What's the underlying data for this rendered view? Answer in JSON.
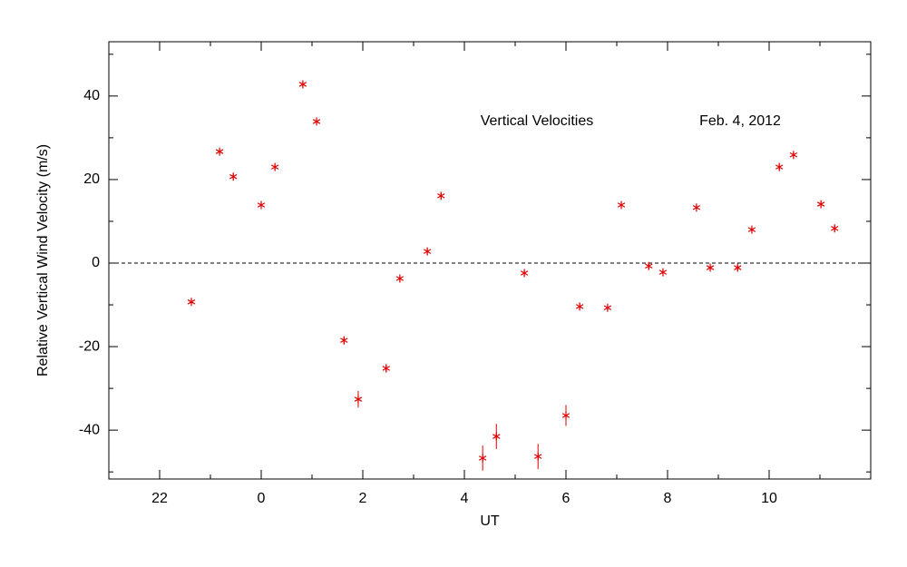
{
  "chart_data": {
    "type": "scatter",
    "xlabel": "UT",
    "ylabel": "Relative Vertical Wind Velocity (m/s)",
    "annotations": [
      "Vertical Velocities",
      "Feb. 4, 2012"
    ],
    "color": "#e00000",
    "x": [
      -1.375,
      -0.82,
      -0.55,
      0.0,
      0.27,
      0.82,
      1.09,
      1.63,
      1.91,
      2.46,
      2.73,
      3.27,
      3.54,
      4.36,
      4.63,
      5.18,
      5.45,
      6.0,
      6.27,
      6.82,
      7.09,
      7.63,
      7.91,
      8.57,
      8.84,
      9.38,
      9.66,
      10.2,
      10.48,
      11.02,
      11.29
    ],
    "values": [
      -9.3,
      26.7,
      20.7,
      13.9,
      23.0,
      42.8,
      33.9,
      -18.5,
      -32.6,
      -25.2,
      -3.7,
      2.8,
      16.1,
      -46.7,
      -41.5,
      -2.4,
      -46.3,
      -36.5,
      -10.4,
      -10.7,
      13.9,
      -0.7,
      -2.2,
      13.3,
      -1.1,
      -1.1,
      8.0,
      23.0,
      25.9,
      14.1,
      8.3
    ],
    "errors": [
      0.8,
      0.8,
      0.8,
      0.8,
      0.8,
      0.8,
      0.8,
      1.0,
      2.0,
      1.0,
      0.8,
      0.8,
      0.8,
      3.0,
      3.0,
      0.8,
      3.0,
      2.5,
      0.8,
      0.8,
      0.8,
      0.8,
      0.8,
      0.8,
      0.8,
      0.8,
      0.8,
      0.8,
      0.8,
      0.8,
      0.8
    ],
    "xlim": [
      -3,
      12
    ],
    "ylim": [
      -51.7,
      53
    ],
    "xticks": [
      {
        "value": -2,
        "label": "22"
      },
      0,
      2,
      4,
      6,
      8,
      10
    ],
    "yticks": [
      -40,
      -20,
      0,
      20,
      40
    ],
    "xticks_minor": [
      -3,
      -1,
      1,
      3,
      5,
      7,
      9,
      11
    ],
    "yticks_minor": [
      -50,
      -30,
      -10,
      10,
      30,
      50
    ],
    "reference_line": 0
  }
}
